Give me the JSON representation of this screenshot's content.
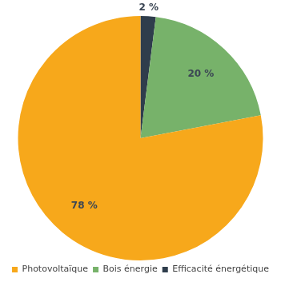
{
  "chart_data": {
    "type": "pie",
    "categories": [
      "Efficacité énergétique",
      "Bois énergie",
      "Photovoltaïque"
    ],
    "values": [
      2,
      20,
      78
    ],
    "value_labels": [
      "2 %",
      "20 %",
      "78 %"
    ],
    "colors": [
      "#2f3d4c",
      "#77b26a",
      "#f7a81b"
    ],
    "data_labels": true,
    "legend": "bottom"
  }
}
